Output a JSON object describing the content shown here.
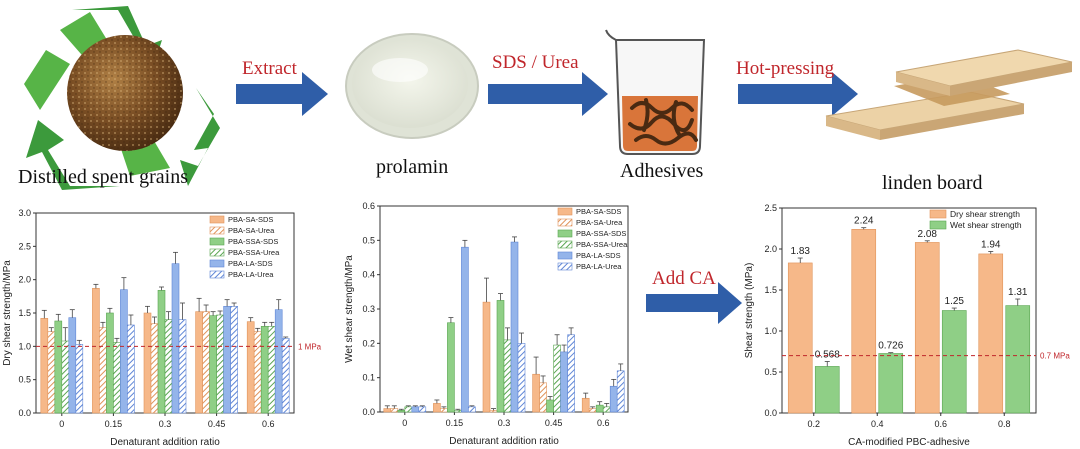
{
  "stages": {
    "grains": "Distilled spent grains",
    "prolamin": "prolamin",
    "adhesives": "Adhesives",
    "linden": "linden board"
  },
  "steps": {
    "extract": "Extract",
    "sds_urea": "SDS / Urea",
    "hot_pressing": "Hot-pressing",
    "add_ca": "Add CA"
  },
  "colors": {
    "arrow": "#2f5ea8",
    "step_text": "#c0262b",
    "orange": "#f6b889",
    "green": "#8fcf86",
    "blue": "#94b4ea",
    "refline": "#c0262b"
  },
  "chart_data": [
    {
      "type": "bar",
      "categories": [
        "0",
        "0.15",
        "0.3",
        "0.45",
        "0.6"
      ],
      "xlabel": "Denaturant addition ratio",
      "ylabel": "Dry shear strength/MPa",
      "ylim": [
        0,
        3.0
      ],
      "yticks": [
        "0.0",
        "0.5",
        "1.0",
        "1.5",
        "2.0",
        "2.5",
        "3.0"
      ],
      "reference": {
        "value": 1.0,
        "label": "1 MPa"
      },
      "legend_position": "top-right",
      "series": [
        {
          "name": "PBA-SA-SDS",
          "values": [
            1.42,
            1.87,
            1.5,
            1.52,
            1.37
          ],
          "errors": [
            0.12,
            0.06,
            0.1,
            0.2,
            0.06
          ]
        },
        {
          "name": "PBA-SA-Urea",
          "values": [
            1.22,
            1.28,
            1.34,
            1.52,
            1.22
          ],
          "errors": [
            0.06,
            0.08,
            0.1,
            0.1,
            0.05
          ]
        },
        {
          "name": "PBA-SSA-SDS",
          "values": [
            1.38,
            1.5,
            1.84,
            1.46,
            1.3
          ],
          "errors": [
            0.1,
            0.07,
            0.05,
            0.06,
            0.06
          ]
        },
        {
          "name": "PBA-SSA-Urea",
          "values": [
            1.08,
            1.06,
            1.4,
            1.47,
            1.3
          ],
          "errors": [
            0.2,
            0.06,
            0.12,
            0.06,
            0.06
          ]
        },
        {
          "name": "PBA-LA-SDS",
          "values": [
            1.43,
            1.85,
            2.24,
            1.6,
            1.55
          ],
          "errors": [
            0.12,
            0.18,
            0.17,
            0.1,
            0.15
          ]
        },
        {
          "name": "PBA-LA-Urea",
          "values": [
            1.03,
            1.32,
            1.4,
            1.6,
            1.12
          ],
          "errors": [
            0.06,
            0.15,
            0.25,
            0.05,
            0.02
          ]
        }
      ]
    },
    {
      "type": "bar",
      "categories": [
        "0",
        "0.15",
        "0.3",
        "0.45",
        "0.6"
      ],
      "xlabel": "Denaturant addition ratio",
      "ylabel": "Wet shear strength/MPa",
      "ylim": [
        0,
        0.6
      ],
      "yticks": [
        "0.0",
        "0.1",
        "0.2",
        "0.3",
        "0.4",
        "0.5",
        "0.6"
      ],
      "legend_position": "top-right",
      "series": [
        {
          "name": "PBA-SA-SDS",
          "values": [
            0.01,
            0.025,
            0.32,
            0.11,
            0.04
          ],
          "errors": [
            0.008,
            0.01,
            0.07,
            0.05,
            0.015
          ]
        },
        {
          "name": "PBA-SA-Urea",
          "values": [
            0.01,
            0.01,
            0.005,
            0.085,
            0.01
          ],
          "errors": [
            0.008,
            0.005,
            0.005,
            0.02,
            0.005
          ]
        },
        {
          "name": "PBA-SSA-SDS",
          "values": [
            0.005,
            0.26,
            0.325,
            0.035,
            0.02
          ],
          "errors": [
            0.003,
            0.015,
            0.02,
            0.01,
            0.01
          ]
        },
        {
          "name": "PBA-SSA-Urea",
          "values": [
            0.015,
            0.005,
            0.21,
            0.195,
            0.015
          ],
          "errors": [
            0.003,
            0.003,
            0.035,
            0.03,
            0.01
          ]
        },
        {
          "name": "PBA-LA-SDS",
          "values": [
            0.015,
            0.48,
            0.495,
            0.175,
            0.075
          ],
          "errors": [
            0.003,
            0.02,
            0.015,
            0.02,
            0.02
          ]
        },
        {
          "name": "PBA-LA-Urea",
          "values": [
            0.015,
            0.015,
            0.2,
            0.225,
            0.12
          ],
          "errors": [
            0.003,
            0.003,
            0.03,
            0.02,
            0.02
          ]
        }
      ]
    },
    {
      "type": "bar",
      "categories": [
        "0.2",
        "0.4",
        "0.6",
        "0.8"
      ],
      "xlabel": "CA-modified PBC-adhesive",
      "ylabel": "Shear strength (MPa)",
      "ylim": [
        0,
        2.5
      ],
      "yticks": [
        "0.0",
        "0.5",
        "1.0",
        "1.5",
        "2.0",
        "2.5"
      ],
      "reference": {
        "value": 0.7,
        "label": "0.7 MPa"
      },
      "legend_position": "top-right",
      "series": [
        {
          "name": "Dry shear strength",
          "values": [
            1.83,
            2.24,
            2.08,
            1.94
          ],
          "labels": [
            "1.83",
            "2.24",
            "2.08",
            "1.94"
          ],
          "errors": [
            0.06,
            0.02,
            0.02,
            0.03
          ]
        },
        {
          "name": "Wet shear strength",
          "values": [
            0.568,
            0.726,
            1.25,
            1.31
          ],
          "labels": [
            "0.568",
            "0.726",
            "1.25",
            "1.31"
          ],
          "errors": [
            0.06,
            0.01,
            0.03,
            0.08
          ]
        }
      ]
    }
  ]
}
